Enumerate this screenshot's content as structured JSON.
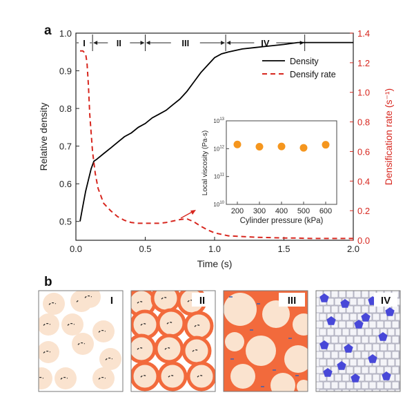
{
  "panel_a_label": "a",
  "panel_b_label": "b",
  "chart_data": [
    {
      "type": "line",
      "xlabel": "Time (s)",
      "ylabel": "Relative density",
      "y2label": "Densification rate (s⁻¹)",
      "xlim": [
        0.0,
        2.0
      ],
      "ylim": [
        0.45,
        1.0
      ],
      "y2lim": [
        0.0,
        1.4
      ],
      "x_ticks": [
        "0.0",
        "0.5",
        "1.0",
        "1.5",
        "2.0"
      ],
      "y_ticks": [
        "0.5",
        "0.6",
        "0.7",
        "0.8",
        "0.9",
        "1.0"
      ],
      "y2_ticks": [
        "0.0",
        "0.2",
        "0.4",
        "0.6",
        "0.8",
        "1.0",
        "1.2",
        "1.4"
      ],
      "stages": [
        {
          "label": "I",
          "start": 0.0,
          "end": 0.12
        },
        {
          "label": "II",
          "start": 0.12,
          "end": 0.5
        },
        {
          "label": "III",
          "start": 0.5,
          "end": 1.08
        },
        {
          "label": "IV",
          "start": 1.08,
          "end": 1.65
        }
      ],
      "legend_position": "top-right",
      "series": [
        {
          "name": "Density",
          "axis": "left",
          "style": "solid",
          "color": "#000000",
          "x": [
            0.03,
            0.05,
            0.07,
            0.09,
            0.11,
            0.13,
            0.15,
            0.2,
            0.25,
            0.3,
            0.35,
            0.4,
            0.45,
            0.5,
            0.55,
            0.6,
            0.65,
            0.7,
            0.75,
            0.8,
            0.85,
            0.9,
            0.95,
            1.0,
            1.05,
            1.1,
            1.2,
            1.3,
            1.4,
            1.5,
            1.6,
            1.7,
            1.8,
            1.9,
            2.0
          ],
          "y": [
            0.5,
            0.54,
            0.58,
            0.61,
            0.64,
            0.66,
            0.665,
            0.68,
            0.695,
            0.71,
            0.725,
            0.735,
            0.75,
            0.76,
            0.775,
            0.785,
            0.795,
            0.81,
            0.825,
            0.845,
            0.87,
            0.895,
            0.915,
            0.935,
            0.945,
            0.95,
            0.958,
            0.962,
            0.966,
            0.97,
            0.975,
            0.975,
            0.975,
            0.975,
            0.975
          ]
        },
        {
          "name": "Densify rate",
          "axis": "right",
          "style": "dashed",
          "color": "#d7261e",
          "x": [
            0.03,
            0.05,
            0.07,
            0.08,
            0.09,
            0.1,
            0.12,
            0.14,
            0.16,
            0.2,
            0.25,
            0.3,
            0.35,
            0.4,
            0.45,
            0.5,
            0.55,
            0.6,
            0.65,
            0.7,
            0.75,
            0.8,
            0.85,
            0.9,
            0.95,
            1.0,
            1.05,
            1.1,
            1.2,
            1.3,
            1.4,
            1.5,
            1.6,
            1.7,
            1.8,
            1.9,
            2.0
          ],
          "y": [
            1.28,
            1.28,
            1.26,
            1.2,
            1.05,
            0.85,
            0.6,
            0.45,
            0.35,
            0.25,
            0.2,
            0.16,
            0.135,
            0.12,
            0.115,
            0.115,
            0.115,
            0.115,
            0.12,
            0.13,
            0.14,
            0.145,
            0.125,
            0.095,
            0.07,
            0.05,
            0.04,
            0.03,
            0.025,
            0.02,
            0.018,
            0.015,
            0.015,
            0.012,
            0.012,
            0.012,
            0.012
          ]
        }
      ]
    },
    {
      "type": "scatter",
      "xlabel": "Cylinder pressure (kPa)",
      "ylabel": "Local viscosity (Pa·s)",
      "xlim": [
        150,
        650
      ],
      "y_scale": "log",
      "ylim_exp": [
        10,
        13
      ],
      "x_ticks": [
        "200",
        "300",
        "400",
        "500",
        "600"
      ],
      "y_ticks": [
        "10",
        "11",
        "12",
        "13"
      ],
      "marker_color": "#f5961e",
      "x": [
        200,
        300,
        400,
        500,
        600
      ],
      "y_exp": [
        12.15,
        12.07,
        12.08,
        12.03,
        12.14
      ]
    }
  ],
  "panel_b": {
    "stage_labels": [
      "I",
      "II",
      "III",
      "IV"
    ],
    "colors": {
      "particle": "#fae3cf",
      "neck": "#f26a3c",
      "pore_marker": "#3c60b0",
      "grain": "#4848d8"
    }
  }
}
